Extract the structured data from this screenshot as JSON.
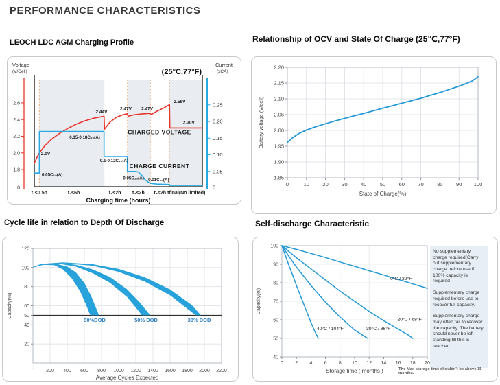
{
  "header": {
    "title": "PERFORMANCE CHARACTERISTICS"
  },
  "sections": {
    "charging": {
      "title": "LEOCH LDC AGM  Charging Profile"
    },
    "ocv": {
      "title": "Relationship of OCV and State Of Charge (25℃,77°F)"
    },
    "cycle": {
      "title": "Cycle life in relation to Depth Of Discharge"
    },
    "self": {
      "title": "Self-discharge Characteristic"
    }
  },
  "chart_data": [
    {
      "id": "charging",
      "type": "line",
      "title": "LEOCH LDC AGM  Charging Profile",
      "condition_label": "(25°C,77°F)",
      "left_axis": {
        "label": "Voltage",
        "sublabel": "(V/Cell)",
        "ticks": [
          2.6,
          2.4,
          2.2,
          2.0,
          1.8
        ],
        "zero_label": "0",
        "color": "#e8352a"
      },
      "right_axis": {
        "label": "Current",
        "sublabel": "(xCA)",
        "ticks": [
          0.25,
          0.2,
          0.15,
          0.1,
          0.05
        ],
        "zero_label": "0",
        "color": "#29a9e0"
      },
      "x_axis": {
        "label": "Charging time (hours)"
      },
      "zone_labels": [
        {
          "text": "t₁≤0.5h",
          "f": 0.03
        },
        {
          "text": "t₂≤6h",
          "f": 0.235
        },
        {
          "text": "t₃≤2h",
          "f": 0.48
        },
        {
          "text": "t₄≤2h",
          "f": 0.62
        },
        {
          "text": "t₅≤2h",
          "f": 0.748
        },
        {
          "text": "tfinal(No limited)",
          "f": 0.905
        }
      ],
      "zone_boundaries": [
        0.03,
        0.415,
        0.554,
        0.691,
        0.805
      ],
      "shaded_zones": [
        [
          0.03,
          0.415
        ],
        [
          0.554,
          0.691
        ],
        [
          0.805,
          1.0
        ]
      ],
      "shade_color": "#e9edf2",
      "dash_color": "#eda66a",
      "voltage_curve": [
        [
          0,
          1.875
        ],
        [
          0.008,
          1.91
        ],
        [
          0.018,
          1.955
        ],
        [
          0.03,
          2.0
        ],
        [
          0.06,
          2.08
        ],
        [
          0.1,
          2.16
        ],
        [
          0.15,
          2.235
        ],
        [
          0.2,
          2.295
        ],
        [
          0.25,
          2.345
        ],
        [
          0.3,
          2.385
        ],
        [
          0.36,
          2.42
        ],
        [
          0.415,
          2.44
        ],
        [
          0.418,
          2.285
        ],
        [
          0.45,
          2.37
        ],
        [
          0.49,
          2.43
        ],
        [
          0.53,
          2.46
        ],
        [
          0.554,
          2.47
        ],
        [
          0.558,
          2.44
        ],
        [
          0.6,
          2.46
        ],
        [
          0.65,
          2.47
        ],
        [
          0.691,
          2.475
        ],
        [
          0.695,
          2.46
        ],
        [
          0.73,
          2.5
        ],
        [
          0.77,
          2.54
        ],
        [
          0.805,
          2.58
        ],
        [
          0.807,
          2.3
        ],
        [
          1.0,
          2.3
        ]
      ],
      "current_curve": [
        [
          0,
          0.045
        ],
        [
          0.03,
          0.045
        ],
        [
          0.03,
          0.17
        ],
        [
          0.415,
          0.17
        ],
        [
          0.415,
          0.095
        ],
        [
          0.554,
          0.095
        ],
        [
          0.554,
          0.05
        ],
        [
          0.6,
          0.05
        ],
        [
          0.62,
          0.048
        ],
        [
          0.64,
          0.038
        ],
        [
          0.66,
          0.025
        ],
        [
          0.68,
          0.017
        ],
        [
          0.691,
          0.014
        ],
        [
          0.73,
          0.012
        ],
        [
          0.805,
          0.011
        ],
        [
          0.805,
          0.008
        ],
        [
          1.0,
          0.008
        ]
      ],
      "annotations": [
        {
          "text": "2.0V",
          "f": 0.04,
          "axis": "v",
          "val": 1.975,
          "an": "start",
          "fs": 6.5
        },
        {
          "text": "0.05C₁₀(A)",
          "f": 0.045,
          "axis": "c",
          "val": 0.036,
          "an": "start",
          "fs": 6.2
        },
        {
          "text": "0.15-0.18C₁₀(A)",
          "f": 0.3,
          "axis": "c",
          "val": 0.148,
          "an": "middle",
          "fs": 6.2
        },
        {
          "text": "2.44V",
          "f": 0.4,
          "axis": "v",
          "val": 2.475,
          "an": "middle",
          "fs": 6.5
        },
        {
          "text": "0.1-0.12C₁₀(A)",
          "f": 0.475,
          "axis": "c",
          "val": 0.078,
          "an": "middle",
          "fs": 6.2
        },
        {
          "text": "2.47V",
          "f": 0.545,
          "axis": "v",
          "val": 2.515,
          "an": "middle",
          "fs": 6.5
        },
        {
          "text": "2.47V",
          "f": 0.672,
          "axis": "v",
          "val": 2.515,
          "an": "middle",
          "fs": 6.5
        },
        {
          "text": "CHARGED VOLTAGE",
          "f": 0.745,
          "axis": "v",
          "val": 2.225,
          "an": "middle",
          "fs": 8.5,
          "ls": 0.5
        },
        {
          "text": "2.58V",
          "f": 0.865,
          "axis": "v",
          "val": 2.6,
          "an": "middle",
          "fs": 6.5
        },
        {
          "text": "2.30V",
          "f": 0.92,
          "axis": "v",
          "val": 2.35,
          "an": "middle",
          "fs": 6.5
        },
        {
          "text": "0.05C₁₀(A)",
          "f": 0.59,
          "axis": "c",
          "val": 0.026,
          "an": "middle",
          "fs": 6.2
        },
        {
          "text": "CHARGE CURRENT",
          "f": 0.745,
          "axis": "c",
          "val": 0.06,
          "an": "middle",
          "fs": 8.5,
          "ls": 0.5
        },
        {
          "text": "0.01C₁₀(A)",
          "f": 0.74,
          "axis": "c",
          "val": 0.021,
          "an": "middle",
          "fs": 6.2
        }
      ],
      "voltage_color": "#e8352a",
      "current_color": "#29a9e0"
    },
    {
      "id": "ocv",
      "type": "line",
      "title": "Relationship of OCV and State Of Charge (25℃,77°F)",
      "xlabel": "State of Charge(%)",
      "ylabel": "Battery voltage (V/cell)",
      "xlim": [
        0,
        100
      ],
      "ylim": [
        1.85,
        2.2
      ],
      "xticks": [
        0,
        10,
        20,
        30,
        40,
        50,
        60,
        70,
        80,
        90,
        100
      ],
      "yticks": [
        2.2,
        2.15,
        2.1,
        2.05,
        2.0,
        1.95,
        1.9,
        1.85
      ],
      "grid": true,
      "line_color": "#2499d6",
      "series": [
        {
          "name": "OCV",
          "points": [
            [
              0,
              1.962
            ],
            [
              3,
              1.978
            ],
            [
              6,
              1.99
            ],
            [
              10,
              2.001
            ],
            [
              15,
              2.012
            ],
            [
              20,
              2.021
            ],
            [
              25,
              2.03
            ],
            [
              30,
              2.038
            ],
            [
              35,
              2.046
            ],
            [
              40,
              2.054
            ],
            [
              45,
              2.062
            ],
            [
              50,
              2.07
            ],
            [
              55,
              2.078
            ],
            [
              60,
              2.086
            ],
            [
              65,
              2.094
            ],
            [
              70,
              2.102
            ],
            [
              75,
              2.111
            ],
            [
              80,
              2.12
            ],
            [
              85,
              2.13
            ],
            [
              90,
              2.14
            ],
            [
              94,
              2.149
            ],
            [
              97,
              2.157
            ],
            [
              100,
              2.17
            ]
          ]
        }
      ]
    },
    {
      "id": "cycle",
      "type": "area-bands",
      "title": "Cycle life in relation to Depth Of Discharge",
      "xlabel": "Average Cycles Expected",
      "ylabel": "Capacity(%)",
      "xlim": [
        0,
        2200
      ],
      "ylim": [
        0,
        120
      ],
      "xticks": [
        0,
        200,
        400,
        600,
        800,
        1000,
        1200,
        1400,
        1600,
        1800,
        2000,
        2200
      ],
      "yticks": [
        120,
        100,
        80,
        60,
        50,
        40,
        20
      ],
      "reference_line_y": 50,
      "grid": true,
      "fill_color": "#28a2da",
      "label_color": "#2e7fc1",
      "bands": [
        {
          "label": "80%DOD",
          "label_x": 720,
          "label_y": 43,
          "upper": [
            [
              0,
              100.5
            ],
            [
              100,
              104
            ],
            [
              250,
              104.5
            ],
            [
              400,
              101
            ],
            [
              500,
              95
            ],
            [
              600,
              84
            ],
            [
              680,
              70
            ],
            [
              740,
              57
            ],
            [
              770,
              50
            ]
          ],
          "lower": [
            [
              0,
              100
            ],
            [
              100,
              103
            ],
            [
              250,
              102.5
            ],
            [
              350,
              98
            ],
            [
              450,
              89
            ],
            [
              550,
              75
            ],
            [
              620,
              61
            ],
            [
              660,
              52
            ],
            [
              672,
              50
            ]
          ]
        },
        {
          "label": "50% DOD",
          "label_x": 1320,
          "label_y": 43,
          "upper": [
            [
              0,
              100.5
            ],
            [
              120,
              104
            ],
            [
              300,
              105
            ],
            [
              500,
              103
            ],
            [
              700,
              98
            ],
            [
              900,
              90
            ],
            [
              1100,
              77
            ],
            [
              1250,
              63
            ],
            [
              1350,
              52
            ],
            [
              1370,
              50
            ]
          ],
          "lower": [
            [
              0,
              100
            ],
            [
              120,
              103.5
            ],
            [
              300,
              104
            ],
            [
              500,
              101
            ],
            [
              700,
              94
            ],
            [
              900,
              84
            ],
            [
              1100,
              69
            ],
            [
              1220,
              56
            ],
            [
              1270,
              50
            ]
          ]
        },
        {
          "label": "30% DOD",
          "label_x": 1940,
          "label_y": 43,
          "upper": [
            [
              0,
              100.5
            ],
            [
              150,
              104
            ],
            [
              350,
              105.5
            ],
            [
              700,
              103.5
            ],
            [
              1000,
              98.5
            ],
            [
              1300,
              90
            ],
            [
              1600,
              77
            ],
            [
              1850,
              61
            ],
            [
              1960,
              50
            ]
          ],
          "lower": [
            [
              0,
              100
            ],
            [
              150,
              103.5
            ],
            [
              350,
              104.5
            ],
            [
              700,
              102
            ],
            [
              1000,
              95.5
            ],
            [
              1300,
              85.5
            ],
            [
              1600,
              71
            ],
            [
              1800,
              57
            ],
            [
              1900,
              50
            ]
          ]
        }
      ]
    },
    {
      "id": "self",
      "type": "line",
      "title": "Self-discharge Characteristic",
      "xlabel": "Storage time ( months )",
      "ylabel": "Capacity(%)",
      "xlim": [
        0,
        20
      ],
      "ylim": [
        40,
        100
      ],
      "xticks": [
        0,
        2,
        4,
        6,
        8,
        10,
        12,
        14,
        16,
        18,
        20
      ],
      "yticks": [
        100,
        90,
        80,
        70,
        60,
        50,
        40
      ],
      "grid": true,
      "line_color": "#2499d6",
      "series": [
        {
          "name": "0°C / 32°F",
          "label_x": 14.9,
          "label_y": 81.5,
          "points": [
            [
              0,
              100
            ],
            [
              2,
              98
            ],
            [
              4,
              95.8
            ],
            [
              6,
              93.6
            ],
            [
              8,
              91.2
            ],
            [
              10,
              88.9
            ],
            [
              12,
              86.5
            ],
            [
              14,
              84.2
            ],
            [
              16,
              81.8
            ],
            [
              18,
              79.4
            ],
            [
              20,
              77
            ]
          ]
        },
        {
          "name": "20°C / 68°F",
          "label_x": 15.9,
          "label_y": 59.5,
          "points": [
            [
              0,
              100
            ],
            [
              2,
              93.5
            ],
            [
              4,
              87.5
            ],
            [
              6,
              81.5
            ],
            [
              8,
              75.5
            ],
            [
              10,
              70
            ],
            [
              12,
              64.5
            ],
            [
              14,
              59.5
            ],
            [
              16,
              55
            ],
            [
              17.5,
              51.5
            ],
            [
              18,
              50
            ]
          ]
        },
        {
          "name": "30°C / 86°F",
          "label_x": 11.6,
          "label_y": 54.5,
          "points": [
            [
              0,
              100
            ],
            [
              1,
              94
            ],
            [
              2,
              88.5
            ],
            [
              3,
              83.5
            ],
            [
              4,
              78.5
            ],
            [
              5,
              74
            ],
            [
              6,
              69.5
            ],
            [
              7,
              65.5
            ],
            [
              8,
              61.5
            ],
            [
              9,
              58
            ],
            [
              10,
              54.5
            ],
            [
              11,
              52
            ],
            [
              11.8,
              50
            ]
          ]
        },
        {
          "name": "40°C / 104°F",
          "label_x": 4.8,
          "label_y": 54.5,
          "points": [
            [
              0,
              100
            ],
            [
              0.5,
              94.5
            ],
            [
              1,
              89
            ],
            [
              1.5,
              84
            ],
            [
              2,
              78.5
            ],
            [
              2.5,
              73.5
            ],
            [
              3,
              68.5
            ],
            [
              3.5,
              63.5
            ],
            [
              4,
              58.5
            ],
            [
              4.5,
              54
            ],
            [
              5,
              50
            ]
          ]
        }
      ],
      "side_notes": [
        "No supplementary charge required(Carry out supplementary charge before use if 100% capacity is required",
        "Supplementary charge required before use to recover full capacity.",
        "Supplementary charge may often fail to recover the capacity. The battery should never be left standing till this is reached."
      ],
      "note": "The Max storage time shouldn't be above 15 months."
    }
  ]
}
